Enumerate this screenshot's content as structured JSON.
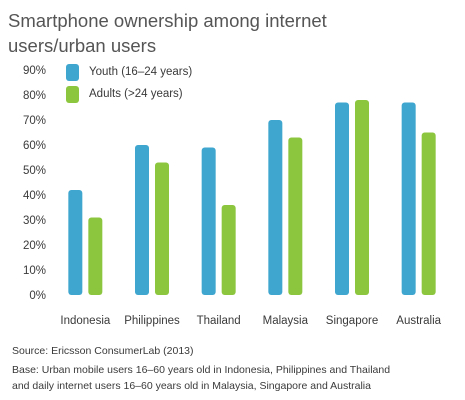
{
  "title_lines": [
    "Smartphone ownership among internet",
    "users/urban users"
  ],
  "source": "Source: Ericsson ConsumerLab (2013)",
  "base_lines": [
    "Base: Urban mobile users 16–60 years old in Indonesia, Philippines and Thailand",
    "and daily internet users 16–60 years old in Malaysia, Singapore and Australia"
  ],
  "chart_data": {
    "type": "bar",
    "categories": [
      "Indonesia",
      "Philippines",
      "Thailand",
      "Malaysia",
      "Singapore",
      "Australia"
    ],
    "series": [
      {
        "name": "Youth (16–24 years)",
        "color": "#3ea6cf",
        "values": [
          42,
          60,
          59,
          70,
          77,
          77
        ]
      },
      {
        "name": "Adults (>24 years)",
        "color": "#8cc63e",
        "values": [
          31,
          53,
          36,
          63,
          78,
          65
        ]
      }
    ],
    "yticks": [
      "0%",
      "10%",
      "20%",
      "30%",
      "40%",
      "50%",
      "60%",
      "70%",
      "80%",
      "90%"
    ],
    "ylim": [
      0,
      90
    ],
    "legend_position": "top-left",
    "grid": false
  }
}
